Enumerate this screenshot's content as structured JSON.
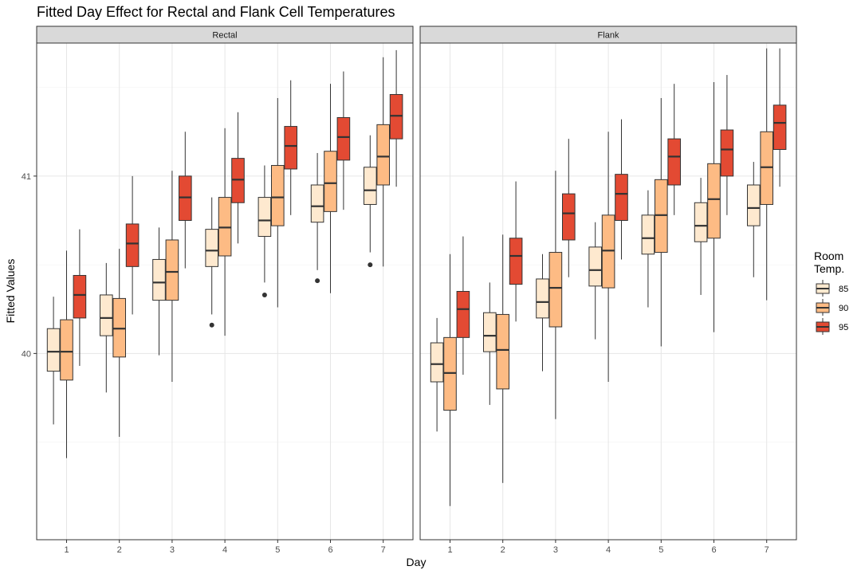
{
  "chart_data": {
    "type": "box",
    "title": "Fitted Day Effect for Rectal and Flank Cell Temperatures",
    "xlabel": "Day",
    "ylabel": "Fitted Values",
    "categories": [
      "1",
      "2",
      "3",
      "4",
      "5",
      "6",
      "7"
    ],
    "y_ticks": [
      {
        "value": 40,
        "label": "40"
      },
      {
        "value": 41,
        "label": "41"
      }
    ],
    "ylim": [
      38.95,
      41.75
    ],
    "grid": true,
    "legend": {
      "title_lines": [
        "Room",
        "Temp."
      ],
      "placement": "right",
      "groups": [
        {
          "label": "85",
          "color": "#FEE9CF"
        },
        {
          "label": "90",
          "color": "#FDBB84"
        },
        {
          "label": "95",
          "color": "#E34A33"
        }
      ]
    },
    "panels": [
      {
        "label": "Rectal",
        "boxes": [
          [
            {
              "wl": 39.6,
              "q1": 39.9,
              "med": 40.01,
              "q3": 40.14,
              "wh": 40.32,
              "outliers": []
            },
            {
              "wl": 39.41,
              "q1": 39.85,
              "med": 40.01,
              "q3": 40.19,
              "wh": 40.58,
              "outliers": []
            },
            {
              "wl": 39.93,
              "q1": 40.2,
              "med": 40.33,
              "q3": 40.44,
              "wh": 40.7,
              "outliers": []
            }
          ],
          [
            {
              "wl": 39.78,
              "q1": 40.1,
              "med": 40.2,
              "q3": 40.33,
              "wh": 40.51,
              "outliers": []
            },
            {
              "wl": 39.53,
              "q1": 39.98,
              "med": 40.14,
              "q3": 40.31,
              "wh": 40.59,
              "outliers": []
            },
            {
              "wl": 40.22,
              "q1": 40.49,
              "med": 40.62,
              "q3": 40.73,
              "wh": 41.0,
              "outliers": []
            }
          ],
          [
            {
              "wl": 39.99,
              "q1": 40.3,
              "med": 40.4,
              "q3": 40.53,
              "wh": 40.71,
              "outliers": []
            },
            {
              "wl": 39.84,
              "q1": 40.3,
              "med": 40.46,
              "q3": 40.64,
              "wh": 41.03,
              "outliers": []
            },
            {
              "wl": 40.48,
              "q1": 40.75,
              "med": 40.88,
              "q3": 41.0,
              "wh": 41.25,
              "outliers": []
            }
          ],
          [
            {
              "wl": 40.22,
              "q1": 40.49,
              "med": 40.58,
              "q3": 40.7,
              "wh": 40.88,
              "outliers": [
                40.16
              ]
            },
            {
              "wl": 40.1,
              "q1": 40.55,
              "med": 40.71,
              "q3": 40.88,
              "wh": 41.27,
              "outliers": []
            },
            {
              "wl": 40.62,
              "q1": 40.85,
              "med": 40.98,
              "q3": 41.1,
              "wh": 41.36,
              "outliers": []
            }
          ],
          [
            {
              "wl": 40.4,
              "q1": 40.66,
              "med": 40.75,
              "q3": 40.88,
              "wh": 41.06,
              "outliers": [
                40.33
              ]
            },
            {
              "wl": 40.26,
              "q1": 40.72,
              "med": 40.88,
              "q3": 41.06,
              "wh": 41.44,
              "outliers": []
            },
            {
              "wl": 40.78,
              "q1": 41.04,
              "med": 41.17,
              "q3": 41.28,
              "wh": 41.54,
              "outliers": []
            }
          ],
          [
            {
              "wl": 40.47,
              "q1": 40.74,
              "med": 40.83,
              "q3": 40.95,
              "wh": 41.13,
              "outliers": [
                40.41
              ]
            },
            {
              "wl": 40.34,
              "q1": 40.8,
              "med": 40.96,
              "q3": 41.14,
              "wh": 41.52,
              "outliers": []
            },
            {
              "wl": 40.81,
              "q1": 41.09,
              "med": 41.22,
              "q3": 41.33,
              "wh": 41.59,
              "outliers": []
            }
          ],
          [
            {
              "wl": 40.57,
              "q1": 40.84,
              "med": 40.92,
              "q3": 41.05,
              "wh": 41.23,
              "outliers": [
                40.5
              ]
            },
            {
              "wl": 40.49,
              "q1": 40.95,
              "med": 41.11,
              "q3": 41.29,
              "wh": 41.67,
              "outliers": []
            },
            {
              "wl": 40.94,
              "q1": 41.21,
              "med": 41.34,
              "q3": 41.46,
              "wh": 41.71,
              "outliers": []
            }
          ]
        ]
      },
      {
        "label": "Flank",
        "boxes": [
          [
            {
              "wl": 39.56,
              "q1": 39.84,
              "med": 39.94,
              "q3": 40.06,
              "wh": 40.2,
              "outliers": []
            },
            {
              "wl": 39.14,
              "q1": 39.68,
              "med": 39.89,
              "q3": 40.09,
              "wh": 40.56,
              "outliers": []
            },
            {
              "wl": 39.88,
              "q1": 40.09,
              "med": 40.25,
              "q3": 40.35,
              "wh": 40.66,
              "outliers": []
            }
          ],
          [
            {
              "wl": 39.71,
              "q1": 40.01,
              "med": 40.1,
              "q3": 40.23,
              "wh": 40.4,
              "outliers": []
            },
            {
              "wl": 39.27,
              "q1": 39.8,
              "med": 40.02,
              "q3": 40.22,
              "wh": 40.67,
              "outliers": []
            },
            {
              "wl": 40.18,
              "q1": 40.39,
              "med": 40.55,
              "q3": 40.65,
              "wh": 40.97,
              "outliers": []
            }
          ],
          [
            {
              "wl": 39.9,
              "q1": 40.2,
              "med": 40.29,
              "q3": 40.42,
              "wh": 40.56,
              "outliers": []
            },
            {
              "wl": 39.63,
              "q1": 40.15,
              "med": 40.37,
              "q3": 40.57,
              "wh": 41.03,
              "outliers": []
            },
            {
              "wl": 40.43,
              "q1": 40.64,
              "med": 40.79,
              "q3": 40.9,
              "wh": 41.21,
              "outliers": []
            }
          ],
          [
            {
              "wl": 40.08,
              "q1": 40.38,
              "med": 40.47,
              "q3": 40.6,
              "wh": 40.74,
              "outliers": []
            },
            {
              "wl": 39.84,
              "q1": 40.37,
              "med": 40.58,
              "q3": 40.78,
              "wh": 41.25,
              "outliers": []
            },
            {
              "wl": 40.53,
              "q1": 40.75,
              "med": 40.9,
              "q3": 41.01,
              "wh": 41.32,
              "outliers": []
            }
          ],
          [
            {
              "wl": 40.26,
              "q1": 40.56,
              "med": 40.65,
              "q3": 40.78,
              "wh": 40.92,
              "outliers": []
            },
            {
              "wl": 40.04,
              "q1": 40.57,
              "med": 40.78,
              "q3": 40.98,
              "wh": 41.44,
              "outliers": []
            },
            {
              "wl": 40.78,
              "q1": 40.95,
              "med": 41.11,
              "q3": 41.21,
              "wh": 41.52,
              "outliers": []
            }
          ],
          [
            {
              "wl": 40.33,
              "q1": 40.63,
              "med": 40.72,
              "q3": 40.85,
              "wh": 40.99,
              "outliers": []
            },
            {
              "wl": 40.12,
              "q1": 40.65,
              "med": 40.87,
              "q3": 41.07,
              "wh": 41.53,
              "outliers": []
            },
            {
              "wl": 40.78,
              "q1": 41.0,
              "med": 41.15,
              "q3": 41.26,
              "wh": 41.57,
              "outliers": []
            }
          ],
          [
            {
              "wl": 40.43,
              "q1": 40.72,
              "med": 40.82,
              "q3": 40.95,
              "wh": 41.08,
              "outliers": []
            },
            {
              "wl": 40.3,
              "q1": 40.84,
              "med": 41.05,
              "q3": 41.25,
              "wh": 41.72,
              "outliers": []
            },
            {
              "wl": 40.94,
              "q1": 41.15,
              "med": 41.3,
              "q3": 41.4,
              "wh": 41.72,
              "outliers": []
            }
          ]
        ]
      }
    ]
  }
}
